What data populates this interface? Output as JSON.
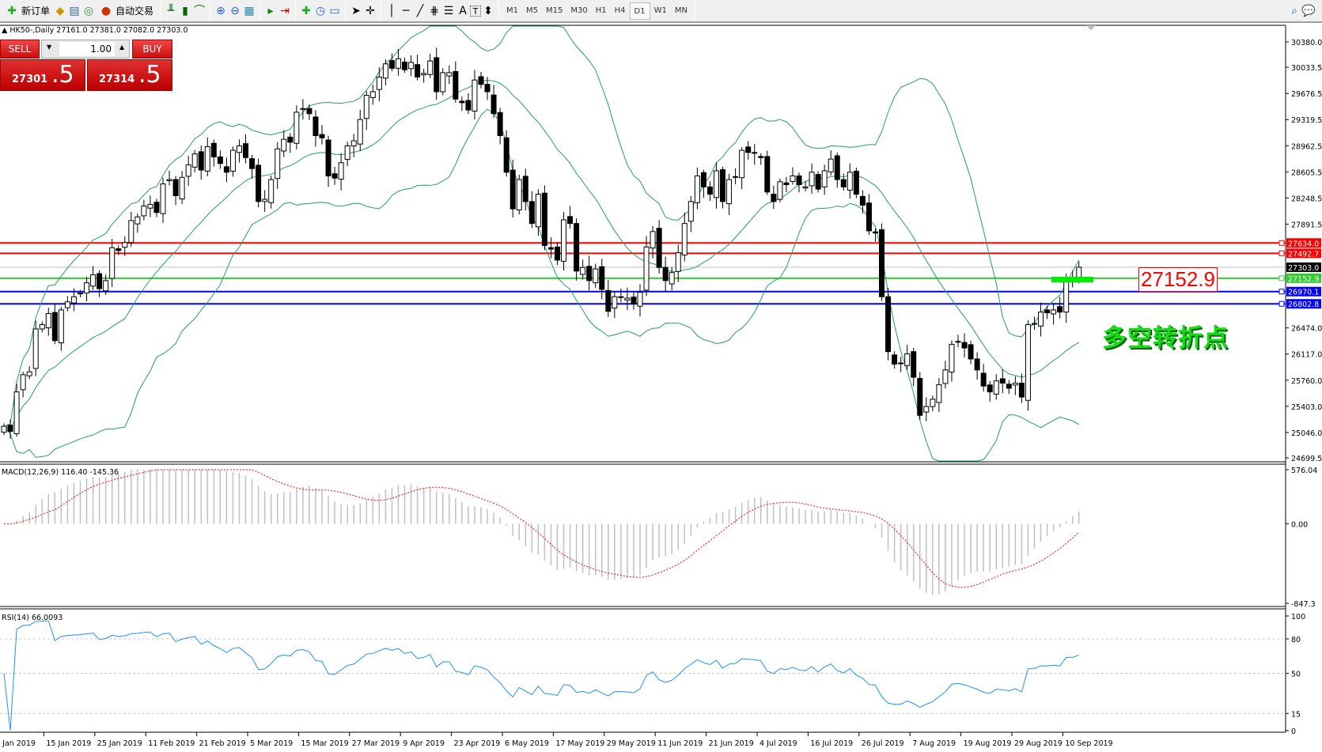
{
  "toolbar": {
    "new_order": "新订单",
    "auto_trading": "自动交易",
    "icons": [
      "new-order-icon",
      "gold-icon",
      "market-watch-icon",
      "signals-icon",
      "auto-trading-icon",
      "bar-chart-icon",
      "candlestick-icon",
      "line-chart-icon",
      "zoom-in-icon",
      "zoom-out-icon",
      "tile-windows-icon",
      "auto-scroll-icon",
      "chart-shift-icon",
      "indicators-icon",
      "periods-icon",
      "templates-icon",
      "cursor-icon",
      "crosshair-icon",
      "vertical-line-icon",
      "horizontal-line-icon",
      "trendline-icon",
      "fibonacci-icon",
      "fibonacci-fan-icon",
      "text-icon",
      "text-label-icon",
      "arrows-icon",
      "search-icon",
      "chat-icon"
    ],
    "text_tool": "A",
    "label_tool": "T",
    "timeframes": [
      "M1",
      "M5",
      "M15",
      "M30",
      "H1",
      "H4",
      "D1",
      "W1",
      "MN"
    ],
    "active_timeframe": "D1"
  },
  "header": {
    "symbol_line": "HK50-,Daily  27161.0 27381.0 27082.0 27303.0"
  },
  "trade_panel": {
    "sell_label": "SELL",
    "buy_label": "BUY",
    "lots": "1.00",
    "sell_price_main": "27301",
    "sell_price_frac": ".5",
    "buy_price_main": "27314",
    "buy_price_frac": ".5"
  },
  "annotations": {
    "price_box": "27152.9",
    "text": "多空转折点"
  },
  "colors": {
    "bull_body": "#ffffff",
    "bear_body": "#000000",
    "bands": "#20a060",
    "macd_hist": "#c0c0c0",
    "macd_signal": "#ff0000",
    "rsi": "#1e90ff",
    "resistance": "#ff0000",
    "pivot": "#33cc33",
    "support": "#0000ff",
    "current": "#000000"
  },
  "chart_data": {
    "type": "candlestick",
    "symbol": "HK50-",
    "timeframe": "Daily",
    "last_bar": {
      "open": 27161.0,
      "high": 27381.0,
      "low": 27082.0,
      "close": 27303.0
    },
    "closes": [
      25130,
      25060,
      25600,
      25835,
      25875,
      26460,
      26520,
      26670,
      26300,
      26720,
      26830,
      26900,
      26950,
      27090,
      27200,
      27010,
      27120,
      27570,
      27530,
      27640,
      27940,
      27990,
      28140,
      28160,
      28050,
      28440,
      28500,
      28280,
      28530,
      28700,
      28850,
      28630,
      28950,
      28810,
      28720,
      28600,
      28900,
      28960,
      28800,
      28650,
      28200,
      28230,
      28500,
      28920,
      29050,
      29010,
      29420,
      29470,
      29400,
      29100,
      29070,
      28550,
      28520,
      28730,
      28960,
      29030,
      29320,
      29650,
      29700,
      29900,
      30080,
      30020,
      30150,
      30000,
      30100,
      29900,
      29950,
      30120,
      29700,
      29960,
      29960,
      29600,
      29550,
      29450,
      29860,
      29800,
      29700,
      29400,
      29100,
      28600,
      28100,
      28500,
      28200,
      27900,
      28300,
      27600,
      27550,
      27400,
      27950,
      27900,
      27250,
      27300,
      27120,
      27280,
      27000,
      26700,
      26900,
      26900,
      26880,
      26800,
      26960,
      27580,
      27790,
      27300,
      27120,
      27230,
      27500,
      27900,
      28200,
      28550,
      28400,
      28300,
      28620,
      28200,
      28500,
      28540,
      28900,
      28870,
      28860,
      28800,
      28330,
      28200,
      28470,
      28430,
      28550,
      28430,
      28400,
      28600,
      28370,
      28620,
      28780,
      28500,
      28400,
      28600,
      28300,
      28150,
      27800,
      27770,
      26900,
      26150,
      25980,
      25990,
      26120,
      25800,
      25280,
      25400,
      25500,
      25700,
      25900,
      26250,
      26290,
      26200,
      26050,
      25900,
      25680,
      25600,
      25750,
      25720,
      25650,
      25720,
      25530,
      26520,
      26530,
      26690,
      26680,
      26720,
      26690,
      27160,
      27160,
      27303
    ],
    "price_axis_ticks": [
      "30380.0",
      "30033.5",
      "29676.5",
      "29319.5",
      "28962.5",
      "28605.5",
      "28248.5",
      "27891.5",
      "26474.0",
      "26117.0",
      "25760.0",
      "25403.0",
      "25046.0",
      "24699.5"
    ],
    "price_range": [
      24699.5,
      30380.0
    ],
    "levels": [
      {
        "price": 27634.0,
        "label": "27634.0",
        "color": "#ff0000"
      },
      {
        "price": 27492.7,
        "label": "27492.7",
        "color": "#ff0000"
      },
      {
        "price": 27303.0,
        "label": "27303.0",
        "color": "#000000"
      },
      {
        "price": 27152.9,
        "label": "27152.9",
        "color": "#33cc33"
      },
      {
        "price": 26970.1,
        "label": "26970.1",
        "color": "#0000ff"
      },
      {
        "price": 26802.8,
        "label": "26802.8",
        "color": "#0000ff"
      }
    ],
    "date_labels": [
      "2 Jan 2019",
      "15 Jan 2019",
      "25 Jan 2019",
      "11 Feb 2019",
      "21 Feb 2019",
      "5 Mar 2019",
      "15 Mar 2019",
      "27 Mar 2019",
      "9 Apr 2019",
      "23 Apr 2019",
      "6 May 2019",
      "17 May 2019",
      "29 May 2019",
      "11 Jun 2019",
      "21 Jun 2019",
      "4 Jul 2019",
      "16 Jul 2019",
      "26 Jul 2019",
      "7 Aug 2019",
      "19 Aug 2019",
      "29 Aug 2019",
      "10 Sep 2019"
    ],
    "bollinger": {
      "period": 20,
      "deviation": 2
    },
    "macd": {
      "label": "MACD(12,26,9) 116.40 -145.36",
      "range": [
        -847.3,
        576.04
      ],
      "ticks": [
        "576.04",
        "0.00",
        "-847.3"
      ]
    },
    "rsi": {
      "label": "RSI(14) 66.0093",
      "range": [
        0,
        100
      ],
      "ticks": [
        "100",
        "80",
        "50",
        "15",
        "0"
      ],
      "levels": [
        80,
        50,
        15
      ]
    }
  }
}
